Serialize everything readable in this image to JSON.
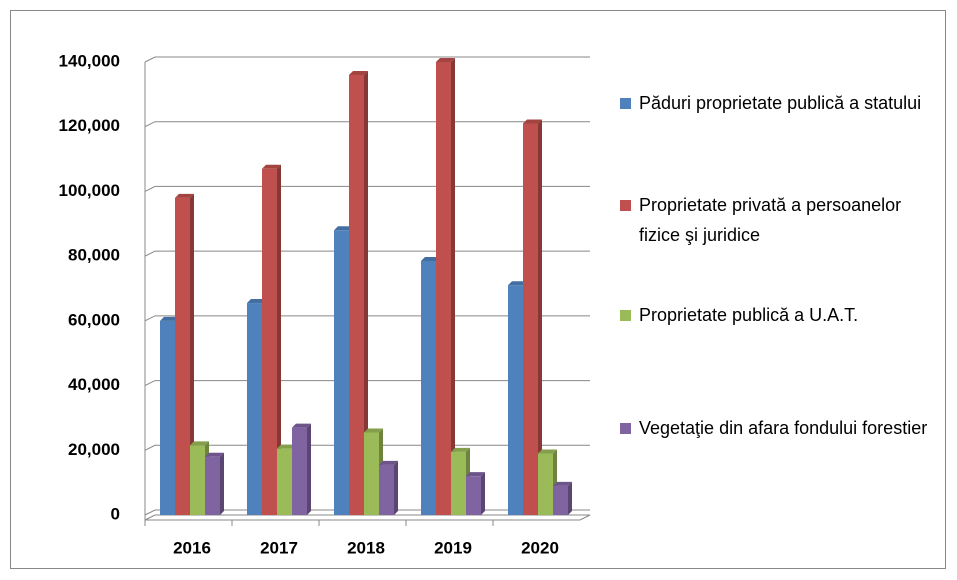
{
  "chart_data": {
    "type": "bar3d",
    "categories": [
      "2016",
      "2017",
      "2018",
      "2019",
      "2020"
    ],
    "series": [
      {
        "name": "Păduri proprietate publică a statului",
        "color": "#4f81bd",
        "values": [
          60000,
          65500,
          88000,
          78500,
          71000
        ]
      },
      {
        "name": "Proprietate privată a persoanelor fizice şi juridice",
        "color": "#c0504d",
        "values": [
          98000,
          107000,
          136000,
          140000,
          121000
        ]
      },
      {
        "name": "Proprietate publică a U.A.T.",
        "color": "#9bbb59",
        "values": [
          21500,
          20500,
          25500,
          19500,
          19000
        ]
      },
      {
        "name": "Vegetaţie din afara fondului forestier",
        "color": "#8064a2",
        "values": [
          18000,
          27000,
          15500,
          12000,
          9000
        ]
      }
    ],
    "ylim": [
      0,
      140000
    ],
    "yticks": [
      0,
      {
        "value": 20000,
        "label": "20,000"
      },
      {
        "value": 40000,
        "label": "40,000"
      },
      {
        "value": 60000,
        "label": "60,000"
      },
      {
        "value": 80000,
        "label": "80,000"
      },
      {
        "value": 100000,
        "label": "100,000"
      },
      {
        "value": 120000,
        "label": "120,000"
      },
      {
        "value": 140000,
        "label": "140,000"
      }
    ],
    "grid": true,
    "legend": "right"
  }
}
